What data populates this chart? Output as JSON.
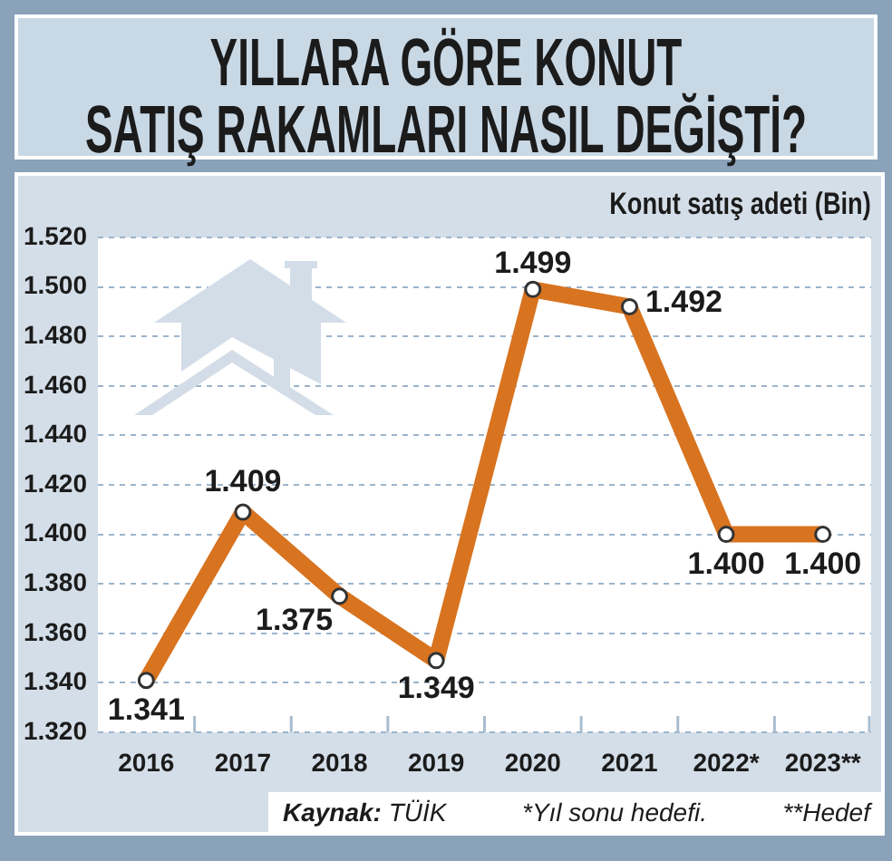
{
  "chart_data": {
    "type": "line",
    "title": "YILLARA GÖRE KONUT\nSATIŞ RAKAMLARI NASIL DEĞİŞTİ?",
    "ylabel": "Konut satış adeti (Bin)",
    "categories": [
      "2016",
      "2017",
      "2018",
      "2019",
      "2020",
      "2021",
      "2022*",
      "2023**"
    ],
    "series": [
      {
        "color": "#d8731f",
        "values": [
          1341,
          1409,
          1375,
          1349,
          1499,
          1492,
          1400,
          1400
        ],
        "value_labels": [
          "1.341",
          "1.409",
          "1.375",
          "1.349",
          "1.499",
          "1.492",
          "1.400",
          "1.400"
        ]
      }
    ],
    "ylim": [
      1320,
      1520
    ],
    "yticks": [
      {
        "value": 1320,
        "label": "1.320"
      },
      {
        "value": 1340,
        "label": "1.340"
      },
      {
        "value": 1360,
        "label": "1.360"
      },
      {
        "value": 1380,
        "label": "1.380"
      },
      {
        "value": 1400,
        "label": "1.400"
      },
      {
        "value": 1420,
        "label": "1.420"
      },
      {
        "value": 1440,
        "label": "1.440"
      },
      {
        "value": 1460,
        "label": "1.460"
      },
      {
        "value": 1480,
        "label": "1.480"
      },
      {
        "value": 1500,
        "label": "1.500"
      },
      {
        "value": 1520,
        "label": "1.520"
      }
    ],
    "grid": "y",
    "marker": "circle",
    "line_style": "solid",
    "annotations": [
      "Kaynak: TÜİK",
      "*Yıl sonu hedefi.",
      "**Hedef"
    ]
  }
}
